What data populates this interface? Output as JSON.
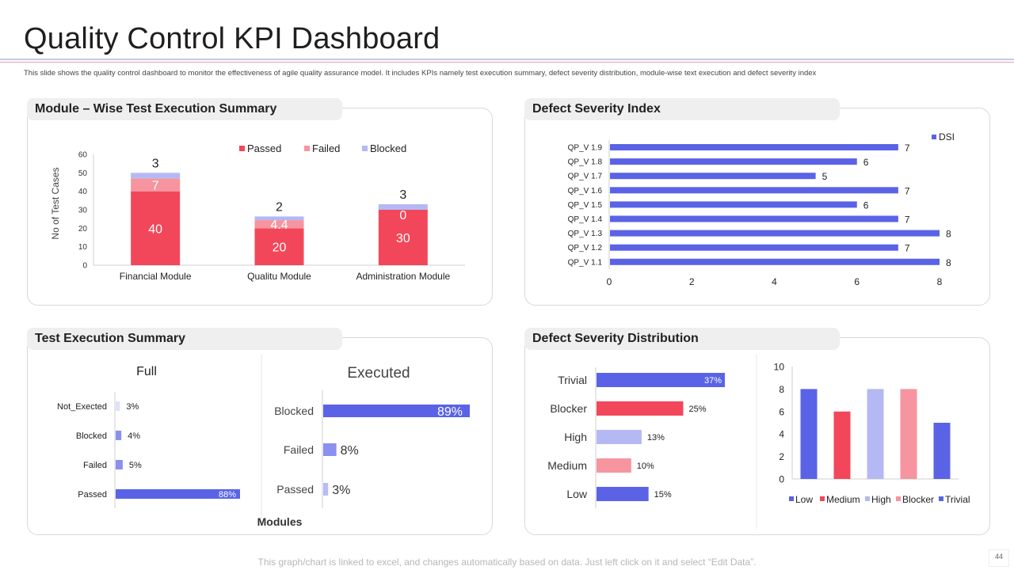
{
  "header": {
    "title": "Quality Control KPI Dashboard",
    "subtitle": "This slide shows the quality control dashboard to monitor the effectiveness of agile quality assurance model. It includes KPIs namely test execution summary, defect severity distribution, module-wise text execution and defect severity index"
  },
  "footer": {
    "note": "This graph/chart is linked to excel, and changes automatically based on data. Just left click on it and select “Edit Data”.",
    "page": "44"
  },
  "panels": {
    "module": "Module – Wise Test Execution Summary",
    "dsi": "Defect Severity Index",
    "tes": "Test Execution Summary",
    "dsd": "Defect Severity Distribution"
  },
  "colors": {
    "red": "#f2475a",
    "pink": "#f6959f",
    "lavender": "#b4b9f4",
    "blue": "#5a63e6"
  },
  "chart_data": [
    {
      "id": "module",
      "type": "bar",
      "stacked": true,
      "title": "Module – Wise Test Execution Summary",
      "categories": [
        "Financial Module",
        "Qualitu Module",
        "Administration Module"
      ],
      "series": [
        {
          "name": "Passed",
          "values": [
            40,
            20,
            30
          ],
          "labels": [
            "40",
            "20",
            "30"
          ]
        },
        {
          "name": "Failed",
          "values": [
            7,
            4.4,
            0
          ],
          "labels": [
            "7",
            "4.4",
            "0"
          ]
        },
        {
          "name": "Blocked",
          "values": [
            3,
            2,
            3
          ],
          "labels": [
            "3",
            "2",
            "3"
          ]
        }
      ],
      "ylabel": "No of Test Cases",
      "ylim": [
        0,
        60
      ],
      "yticks": [
        0,
        10,
        20,
        30,
        40,
        50,
        60
      ],
      "legend": "top"
    },
    {
      "id": "dsi",
      "type": "bar",
      "orientation": "horizontal",
      "title": "Defect Severity Index",
      "categories": [
        "QP_V 1.9",
        "QP_V 1.8",
        "QP_V 1.7",
        "QP_V 1.6",
        "QP_V 1.5",
        "QP_V 1.4",
        "QP_V 1.3",
        "QP_V 1.2",
        "QP_V 1.1"
      ],
      "series": [
        {
          "name": "DSI",
          "values": [
            7,
            6,
            5,
            7,
            6,
            7,
            8,
            7,
            8
          ]
        }
      ],
      "xlim": [
        0,
        8
      ],
      "xticks": [
        0,
        2,
        4,
        6,
        8
      ],
      "legend": "top-right"
    },
    {
      "id": "full",
      "type": "bar",
      "orientation": "horizontal",
      "title": "Full",
      "categories": [
        "Not_Exected",
        "Blocked",
        "Failed",
        "Passed"
      ],
      "values": [
        3,
        4,
        5,
        88
      ],
      "labels": [
        "3%",
        "4%",
        "5%",
        "88%"
      ],
      "xlabel": "Modules"
    },
    {
      "id": "executed",
      "type": "bar",
      "orientation": "horizontal",
      "title": "Executed",
      "categories": [
        "Blocked",
        "Failed",
        "Passed"
      ],
      "values": [
        89,
        8,
        3
      ],
      "labels": [
        "89%",
        "8%",
        "3%"
      ]
    },
    {
      "id": "dsd_pct",
      "type": "bar",
      "orientation": "horizontal",
      "title": "Defect Severity Distribution",
      "categories": [
        "Trivial",
        "Blocker",
        "High",
        "Medium",
        "Low"
      ],
      "values": [
        37,
        25,
        13,
        10,
        15
      ],
      "labels": [
        "37%",
        "25%",
        "13%",
        "10%",
        "15%"
      ]
    },
    {
      "id": "dsd_count",
      "type": "bar",
      "categories": [
        "Low",
        "Medium",
        "High",
        "Blocker",
        "Trivial"
      ],
      "values": [
        8,
        6,
        8,
        8,
        5
      ],
      "ylim": [
        0,
        10
      ],
      "yticks": [
        0,
        2,
        4,
        6,
        8,
        10
      ],
      "legend": "bottom"
    }
  ]
}
